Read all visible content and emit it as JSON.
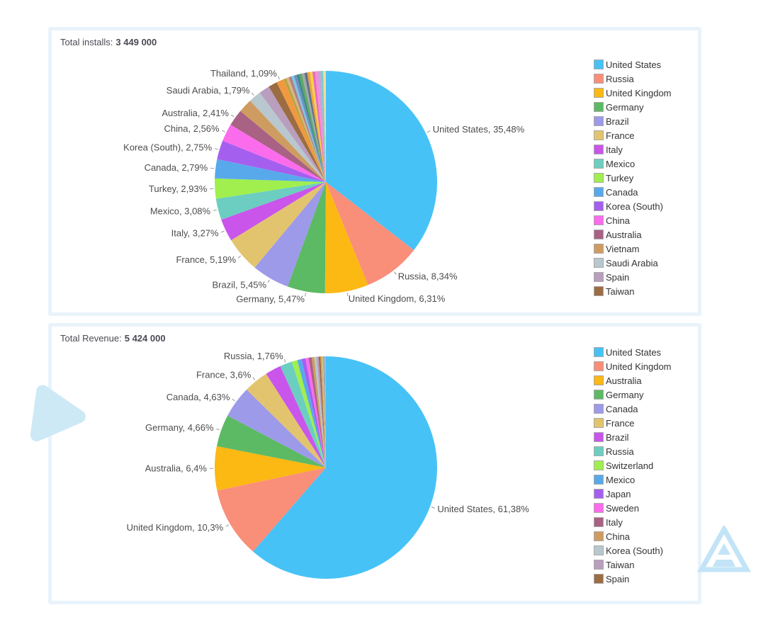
{
  "page": {
    "background": "#ffffff",
    "panel_border_color": "#e8f3fb"
  },
  "decor": {
    "triangle_color": "#cde9f6",
    "logo_color": "#c2e4f6"
  },
  "chart_data": [
    {
      "type": "pie",
      "title_label": "Total installs:",
      "title_value": "3 449 000",
      "legend_position": "right",
      "legend_count": 17,
      "slices": [
        {
          "name": "United States",
          "value": 35.48,
          "color": "#47C2F7",
          "label": "United States, 35,48%"
        },
        {
          "name": "Russia",
          "value": 8.34,
          "color": "#F98E79",
          "label": "Russia, 8,34%"
        },
        {
          "name": "United Kingdom",
          "value": 6.31,
          "color": "#FCB813",
          "label": "United Kingdom, 6,31%"
        },
        {
          "name": "Germany",
          "value": 5.47,
          "color": "#5BBA63",
          "label": "Germany, 5,47%"
        },
        {
          "name": "Brazil",
          "value": 5.45,
          "color": "#9D9AE9",
          "label": "Brazil, 5,45%"
        },
        {
          "name": "France",
          "value": 5.19,
          "color": "#E3C46E",
          "label": "France, 5,19%"
        },
        {
          "name": "Italy",
          "value": 3.27,
          "color": "#C955EB",
          "label": "Italy, 3,27%"
        },
        {
          "name": "Mexico",
          "value": 3.08,
          "color": "#6CCEC1",
          "label": "Mexico, 3,08%"
        },
        {
          "name": "Turkey",
          "value": 2.93,
          "color": "#A0EF4E",
          "label": "Turkey, 2,93%"
        },
        {
          "name": "Canada",
          "value": 2.79,
          "color": "#58A9EB",
          "label": "Canada, 2,79%"
        },
        {
          "name": "Korea (South)",
          "value": 2.75,
          "color": "#A55FEF",
          "label": "Korea (South), 2,75%"
        },
        {
          "name": "China",
          "value": 2.56,
          "color": "#FB6CEC",
          "label": "China, 2,56%"
        },
        {
          "name": "Australia",
          "value": 2.41,
          "color": "#A96184",
          "label": "Australia, 2,41%"
        },
        {
          "name": "Vietnam",
          "value": 2.04,
          "color": "#CE9C60",
          "label": null
        },
        {
          "name": "Saudi Arabia",
          "value": 1.79,
          "color": "#B9C7CE",
          "label": "Saudi Arabia, 1,79%"
        },
        {
          "name": "Spain",
          "value": 1.55,
          "color": "#B99EBD",
          "label": null
        },
        {
          "name": "Taiwan",
          "value": 1.3,
          "color": "#9C6C42",
          "label": null
        },
        {
          "name": "Thailand",
          "value": 1.09,
          "color": "#F0993E",
          "label": "Thailand, 1,09%"
        }
      ],
      "others": {
        "total": 6.2,
        "count": 16,
        "palette": [
          "#B5A642",
          "#D9B382",
          "#B08080",
          "#7EC4E8",
          "#6F8FBF",
          "#3C8C8C",
          "#63A85F",
          "#9FA8AD",
          "#5E718A",
          "#F2A33C",
          "#F2D349",
          "#E76BC3",
          "#F58BD4",
          "#C9A0DC",
          "#79D0C3",
          "#F5D9A0"
        ]
      }
    },
    {
      "type": "pie",
      "title_label": "Total Revenue:",
      "title_value": "5 424 000",
      "legend_position": "right",
      "legend_count": 17,
      "slices": [
        {
          "name": "United States",
          "value": 61.38,
          "color": "#47C2F7",
          "label": "United States, 61,38%"
        },
        {
          "name": "United Kingdom",
          "value": 10.3,
          "color": "#F98E79",
          "label": "United Kingdom, 10,3%"
        },
        {
          "name": "Australia",
          "value": 6.4,
          "color": "#FCB813",
          "label": "Australia, 6,4%"
        },
        {
          "name": "Germany",
          "value": 4.66,
          "color": "#5BBA63",
          "label": "Germany, 4,66%"
        },
        {
          "name": "Canada",
          "value": 4.63,
          "color": "#9D9AE9",
          "label": "Canada, 4,63%"
        },
        {
          "name": "France",
          "value": 3.6,
          "color": "#E3C46E",
          "label": "France, 3,6%"
        },
        {
          "name": "Brazil",
          "value": 2.31,
          "color": "#C955EB",
          "label": null
        },
        {
          "name": "Russia",
          "value": 1.76,
          "color": "#6CCEC1",
          "label": "Russia, 1,76%"
        },
        {
          "name": "Switzerland",
          "value": 0.8,
          "color": "#A0EF4E",
          "label": null
        },
        {
          "name": "Mexico",
          "value": 0.65,
          "color": "#58A9EB",
          "label": null
        },
        {
          "name": "Japan",
          "value": 0.55,
          "color": "#A55FEF",
          "label": null
        },
        {
          "name": "Sweden",
          "value": 0.48,
          "color": "#FB6CEC",
          "label": null
        },
        {
          "name": "Italy",
          "value": 0.42,
          "color": "#A96184",
          "label": null
        },
        {
          "name": "China",
          "value": 0.38,
          "color": "#CE9C60",
          "label": null
        },
        {
          "name": "Korea (South)",
          "value": 0.34,
          "color": "#B9C7CE",
          "label": null
        },
        {
          "name": "Taiwan",
          "value": 0.3,
          "color": "#B99EBD",
          "label": null
        },
        {
          "name": "Spain",
          "value": 0.27,
          "color": "#9C6C42",
          "label": null
        }
      ],
      "others": {
        "total": 0.77,
        "count": 6,
        "palette": [
          "#F2A33C",
          "#9FA8AD",
          "#F2D349",
          "#B08080",
          "#7EC4E8",
          "#C9A0DC"
        ]
      }
    }
  ]
}
